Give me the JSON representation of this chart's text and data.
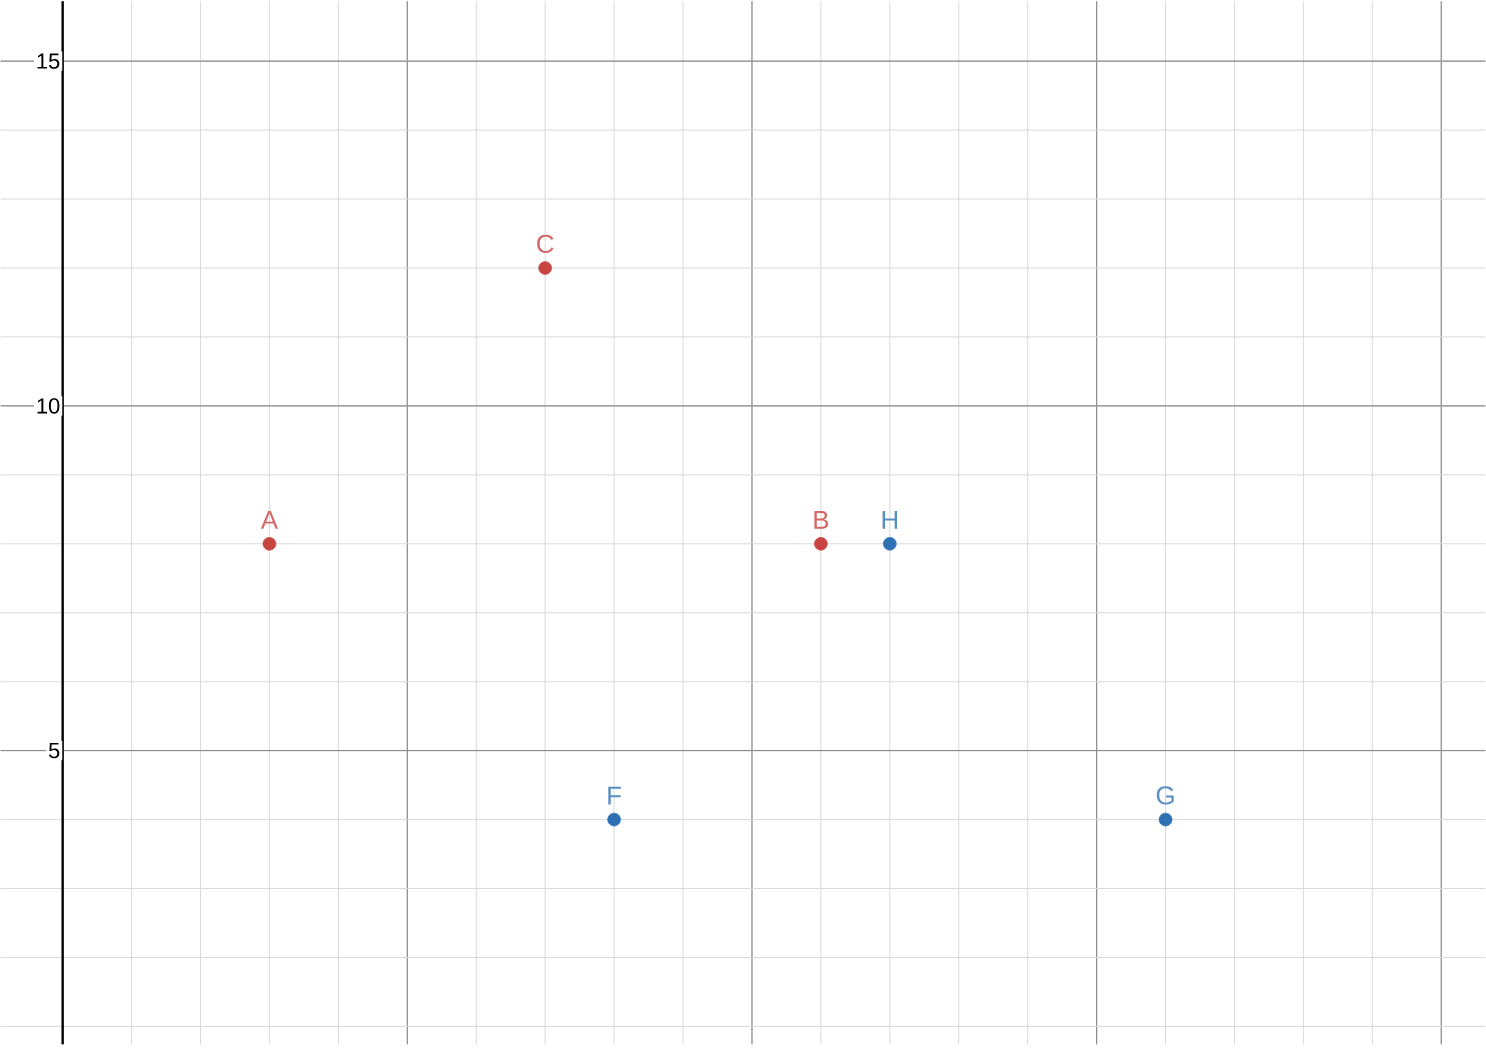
{
  "chart_data": {
    "type": "scatter",
    "grid": true,
    "tick_labels": "y",
    "categories": [
      null,
      null,
      null,
      null,
      null,
      null,
      null,
      null,
      null,
      null,
      null,
      null,
      null,
      null,
      null,
      null,
      null,
      null,
      null,
      null,
      null
    ],
    "ylim": [
      0.74,
      15.87
    ],
    "yticks": [
      5,
      10,
      15
    ],
    "series": [
      {
        "color": "#c74440",
        "values": [
          null,
          null,
          null,
          8,
          null,
          null,
          null,
          12,
          null,
          null,
          null,
          8,
          null,
          null,
          null,
          null,
          null,
          null,
          null,
          null,
          null
        ],
        "value_labels": [
          null,
          null,
          null,
          "A",
          null,
          null,
          null,
          "C",
          null,
          null,
          null,
          "B",
          null,
          null,
          null,
          null,
          null,
          null,
          null,
          null,
          null
        ]
      },
      {
        "color": "#2d70b3",
        "values": [
          null,
          null,
          null,
          null,
          null,
          null,
          null,
          null,
          4,
          null,
          null,
          null,
          8,
          null,
          null,
          null,
          4,
          null,
          null,
          null,
          null
        ],
        "value_labels": [
          null,
          null,
          null,
          null,
          null,
          null,
          null,
          null,
          "F",
          null,
          null,
          null,
          "H",
          null,
          null,
          null,
          "G",
          null,
          null,
          null,
          null
        ]
      }
    ]
  }
}
